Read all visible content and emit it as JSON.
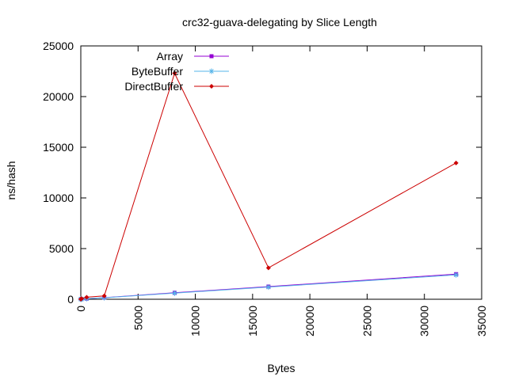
{
  "chart_data": {
    "type": "line",
    "title": "crc32-guava-delegating by Slice Length",
    "xlabel": "Bytes",
    "ylabel": "ns/hash",
    "xlim": [
      0,
      35000
    ],
    "ylim": [
      0,
      25000
    ],
    "xticks": [
      0,
      5000,
      10000,
      15000,
      20000,
      25000,
      30000,
      35000
    ],
    "yticks": [
      0,
      5000,
      10000,
      15000,
      20000,
      25000
    ],
    "grid": false,
    "legend_position": "top-left",
    "series": [
      {
        "name": "Array",
        "color": "#9400d3",
        "marker": "square",
        "x": [
          1,
          8,
          64,
          512,
          2048,
          8192,
          16384,
          32768
        ],
        "y": [
          5,
          8,
          15,
          60,
          160,
          640,
          1250,
          2480
        ]
      },
      {
        "name": "ByteBuffer",
        "color": "#56b4e9",
        "marker": "star",
        "x": [
          1,
          8,
          64,
          512,
          2048,
          8192,
          16384,
          32768
        ],
        "y": [
          5,
          8,
          15,
          55,
          150,
          600,
          1200,
          2400
        ]
      },
      {
        "name": "DirectBuffer",
        "color": "#cc0000",
        "marker": "diamond",
        "x": [
          1,
          8,
          64,
          512,
          2048,
          8192,
          16384,
          32768
        ],
        "y": [
          10,
          20,
          60,
          200,
          330,
          22300,
          3100,
          13450
        ]
      }
    ]
  }
}
